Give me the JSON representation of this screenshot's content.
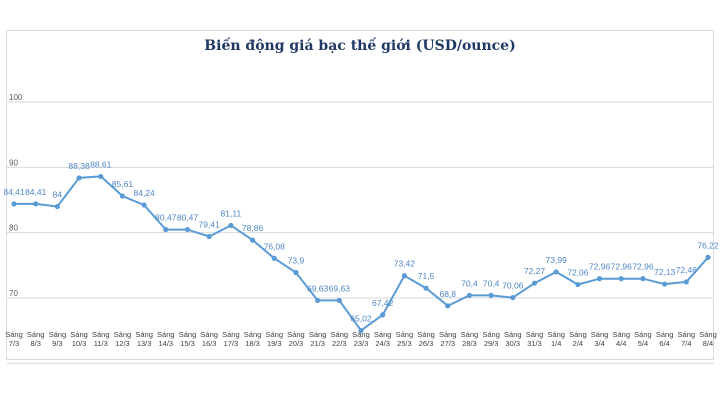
{
  "chart_data": {
    "type": "line",
    "title": "Biến động giá bạc thế giới (USD/ounce)",
    "xlabel": "",
    "ylabel": "",
    "ylim": [
      60,
      100
    ],
    "yticks": [
      70,
      80,
      90,
      100
    ],
    "grid": true,
    "legend": "none",
    "color": "#5b9bd5",
    "categories": [
      [
        "Sáng",
        "7/3"
      ],
      [
        "Sáng",
        "8/3"
      ],
      [
        "Sáng",
        "9/3"
      ],
      [
        "Sáng",
        "10/3"
      ],
      [
        "Sáng",
        "11/3"
      ],
      [
        "Sáng",
        "12/3"
      ],
      [
        "Sáng",
        "13/3"
      ],
      [
        "Sáng",
        "14/3"
      ],
      [
        "Sáng",
        "15/3"
      ],
      [
        "Sáng",
        "16/3"
      ],
      [
        "Sáng",
        "17/3"
      ],
      [
        "Sáng",
        "18/3"
      ],
      [
        "Sáng",
        "19/3"
      ],
      [
        "Sáng",
        "20/3"
      ],
      [
        "Sáng",
        "21/3"
      ],
      [
        "Sáng",
        "22/3"
      ],
      [
        "Sáng",
        "23/3"
      ],
      [
        "Sáng",
        "24/3"
      ],
      [
        "Sáng",
        "25/3"
      ],
      [
        "Sáng",
        "26/3"
      ],
      [
        "Sáng",
        "27/3"
      ],
      [
        "Sáng",
        "28/3"
      ],
      [
        "Sáng",
        "29/3"
      ],
      [
        "Sáng",
        "30/3"
      ],
      [
        "Sáng",
        "31/3"
      ],
      [
        "Sáng",
        "1/4"
      ],
      [
        "Sáng",
        "2/4"
      ],
      [
        "Sáng",
        "3/4"
      ],
      [
        "Sáng",
        "4/4"
      ],
      [
        "Sáng",
        "5/4"
      ],
      [
        "Sáng",
        "6/4"
      ],
      [
        "Sáng",
        "7/4"
      ],
      [
        "Sáng",
        "8/4"
      ]
    ],
    "values": [
      84.41,
      84.41,
      84,
      88.38,
      88.61,
      85.61,
      84.24,
      80.47,
      80.47,
      79.41,
      81.11,
      78.86,
      76.08,
      73.9,
      69.63,
      69.63,
      65.02,
      67.42,
      73.42,
      71.5,
      68.8,
      70.4,
      70.4,
      70.06,
      72.27,
      73.99,
      72.06,
      72.96,
      72.96,
      72.96,
      72.13,
      72.46,
      76.22
    ],
    "labels": [
      "84,41",
      "84,41",
      "84",
      "88,38",
      "88,61",
      "85,61",
      "84,24",
      "80,47",
      "80,47",
      "79,41",
      "81,11",
      "78,86",
      "76,08",
      "73,9",
      "69,63",
      "69,63",
      "65,02",
      "67,42",
      "73,42",
      "71,5",
      "68,8",
      "70,4",
      "70,4",
      "70,06",
      "72,27",
      "73,99",
      "72,06",
      "72,96",
      "72,96",
      "72,96",
      "72,13",
      "72,46",
      "76,22"
    ]
  }
}
